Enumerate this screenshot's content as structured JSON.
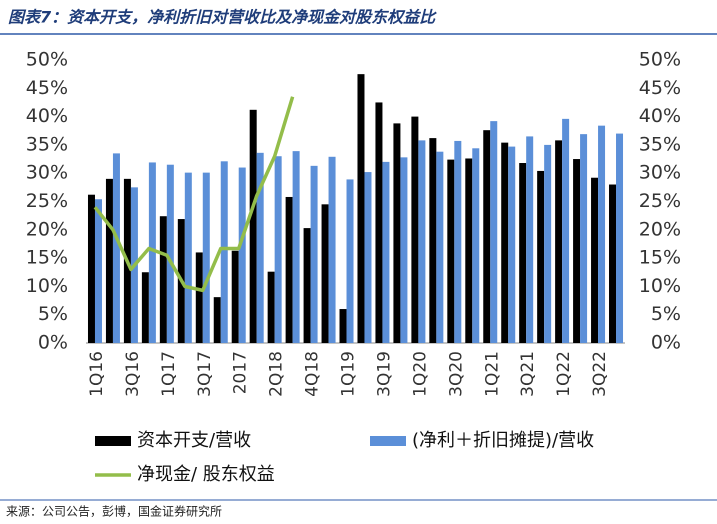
{
  "chart_data": {
    "type": "bar",
    "title": "图表7：资本开支，净利折旧对营收比及净现金对股东权益比",
    "source": "来源：公司公告，彭博，国金证券研究所",
    "categories": [
      "1Q16",
      null,
      "3Q16",
      null,
      "1Q17",
      null,
      "3Q17",
      null,
      "2017",
      null,
      "2Q18",
      null,
      "4Q18",
      null,
      "1Q19",
      null,
      "3Q19",
      null,
      "1Q20",
      null,
      "3Q20",
      null,
      "1Q21",
      null,
      "3Q21",
      null,
      "1Q22",
      null,
      "3Q22",
      null
    ],
    "series": [
      {
        "name": "资本开支/营收",
        "color": "#000000",
        "type": "bar",
        "values": [
          26.2,
          29,
          29,
          12.5,
          22.4,
          21.9,
          16,
          8.1,
          16.3,
          41.2,
          12.6,
          25.8,
          20.3,
          24.5,
          6,
          47.5,
          42.5,
          38.8,
          40,
          36.2,
          32.4,
          32.6,
          37.6,
          35.4,
          31.8,
          30.4,
          35.8,
          32.5,
          29.2,
          28
        ]
      },
      {
        "name": "(净利＋折旧摊提)/营收",
        "color": "#5b8fd8",
        "type": "bar",
        "values": [
          25.4,
          33.5,
          27.5,
          31.9,
          31.5,
          30.1,
          30.1,
          32.1,
          31,
          33.6,
          33,
          33.9,
          31.3,
          32.9,
          28.9,
          30.2,
          32,
          32.8,
          35.8,
          33.8,
          35.7,
          34.4,
          39.2,
          34.7,
          36.5,
          35,
          39.6,
          36.9,
          38.4,
          37
        ]
      },
      {
        "name": "净现金/ 股东权益",
        "color": "#93bd4a",
        "type": "line",
        "values": [
          24,
          20,
          13,
          16.7,
          15.5,
          10,
          9.3,
          16.7,
          16.7,
          26,
          33,
          43.5,
          null,
          null,
          null,
          null,
          null,
          null,
          null,
          null,
          null,
          null,
          null,
          null,
          null,
          null,
          null,
          null,
          null,
          null
        ]
      }
    ],
    "ylim": [
      0,
      50
    ],
    "yticks": [
      {
        "value": 0,
        "label": "0%"
      },
      {
        "value": 5,
        "label": "5%"
      },
      {
        "value": 10,
        "label": "10%"
      },
      {
        "value": 15,
        "label": "15%"
      },
      {
        "value": 20,
        "label": "20%"
      },
      {
        "value": 25,
        "label": "25%"
      },
      {
        "value": 30,
        "label": "30%"
      },
      {
        "value": 35,
        "label": "35%"
      },
      {
        "value": 40,
        "label": "40%"
      },
      {
        "value": 45,
        "label": "45%"
      },
      {
        "value": 50,
        "label": "50%"
      }
    ],
    "y2lim": [
      0,
      50
    ],
    "y2ticks": [
      {
        "value": 0,
        "label": "0%"
      },
      {
        "value": 5,
        "label": "5%"
      },
      {
        "value": 10,
        "label": "10%"
      },
      {
        "value": 15,
        "label": "15%"
      },
      {
        "value": 20,
        "label": "20%"
      },
      {
        "value": 25,
        "label": "25%"
      },
      {
        "value": 30,
        "label": "30%"
      },
      {
        "value": 35,
        "label": "35%"
      },
      {
        "value": 40,
        "label": "40%"
      },
      {
        "value": 45,
        "label": "45%"
      },
      {
        "value": 50,
        "label": "50%"
      }
    ],
    "grid": false
  }
}
